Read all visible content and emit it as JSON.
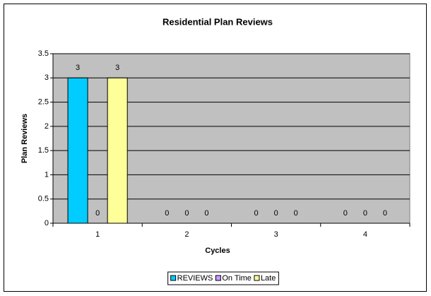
{
  "chart_data": {
    "type": "bar",
    "title": "Residential Plan Reviews",
    "xlabel": "Cycles",
    "ylabel": "Plan Reviews",
    "categories": [
      "1",
      "2",
      "3",
      "4"
    ],
    "series": [
      {
        "name": "REVIEWS",
        "color": "#00ccff",
        "values": [
          3,
          0,
          0,
          0
        ]
      },
      {
        "name": "On Time",
        "color": "#cc99ff",
        "values": [
          0,
          0,
          0,
          0
        ]
      },
      {
        "name": "Late",
        "color": "#ffff99",
        "values": [
          3,
          0,
          0,
          0
        ]
      }
    ],
    "ylim": [
      0,
      3.5
    ],
    "yticks": [
      0,
      0.5,
      1,
      1.5,
      2,
      2.5,
      3,
      3.5
    ],
    "grid": true,
    "legend": "bottom"
  }
}
